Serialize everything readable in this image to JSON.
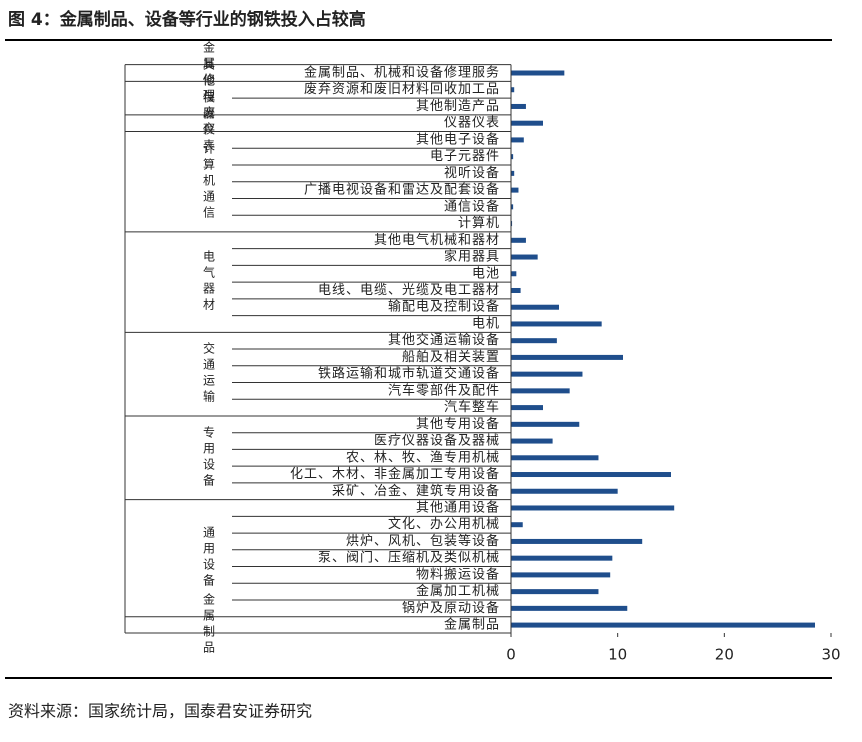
{
  "chart_data": {
    "type": "bar",
    "title": "图 4：金属制品、设备等行业的钢铁投入占较高",
    "source": "资料来源：国家统计局，国泰君安证券研究",
    "color": "#1f4e8c",
    "xlim": [
      0,
      30
    ],
    "xticks": [
      0,
      10,
      20,
      30
    ],
    "groups": [
      {
        "name": "金属修理",
        "categories": [
          "金属制品、机械和设备修理服务"
        ],
        "values": [
          5.0
        ]
      },
      {
        "name": "其他与废弃",
        "categories": [
          "废弃资源和废旧材料回收加工品",
          "其他制造产品"
        ],
        "values": [
          0.3,
          1.4
        ]
      },
      {
        "name": "仪器仪表",
        "categories": [
          "仪器仪表"
        ],
        "values": [
          3.0
        ]
      },
      {
        "name": "计算机通信",
        "categories": [
          "其他电子设备",
          "电子元器件",
          "视听设备",
          "广播电视设备和雷达及配套设备",
          "通信设备",
          "计算机"
        ],
        "values": [
          1.2,
          0.2,
          0.3,
          0.7,
          0.2,
          0.1
        ]
      },
      {
        "name": "电气器材",
        "categories": [
          "其他电气机械和器材",
          "家用器具",
          "电池",
          "电线、电缆、光缆及电工器材",
          "输配电及控制设备",
          "电机"
        ],
        "values": [
          1.4,
          2.5,
          0.5,
          0.9,
          4.5,
          8.5
        ]
      },
      {
        "name": "交通运输",
        "categories": [
          "其他交通运输设备",
          "船舶及相关装置",
          "铁路运输和城市轨道交通设备",
          "汽车零部件及配件",
          "汽车整车"
        ],
        "values": [
          4.3,
          10.5,
          6.7,
          5.5,
          3.0
        ]
      },
      {
        "name": "专用设备",
        "categories": [
          "其他专用设备",
          "医疗仪器设备及器械",
          "农、林、牧、渔专用机械",
          "化工、木材、非金属加工专用设备",
          "采矿、冶金、建筑专用设备"
        ],
        "values": [
          6.4,
          3.9,
          8.2,
          15.0,
          10.0
        ]
      },
      {
        "name": "通用设备",
        "categories": [
          "其他通用设备",
          "文化、办公用机械",
          "烘炉、风机、包装等设备",
          "泵、阀门、压缩机及类似机械",
          "物料搬运设备",
          "金属加工机械",
          "锅炉及原动设备"
        ],
        "values": [
          15.3,
          1.1,
          12.3,
          9.5,
          9.3,
          8.2,
          10.9
        ]
      },
      {
        "name": "金属制品",
        "categories": [
          "金属制品"
        ],
        "values": [
          28.5
        ]
      }
    ]
  }
}
